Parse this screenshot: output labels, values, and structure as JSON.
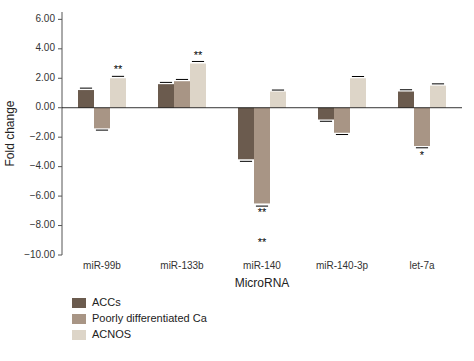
{
  "chart_data": {
    "type": "bar",
    "xlabel": "MicroRNA",
    "ylabel": "Fold change",
    "categories": [
      "miR-99b",
      "miR-133b",
      "miR-140",
      "miR-140-3p",
      "let-7a"
    ],
    "series": [
      {
        "name": "ACCs",
        "color": "#6b5b4e",
        "values": [
          1.2,
          1.6,
          -3.5,
          -0.8,
          1.1
        ],
        "errors": [
          0.13,
          0.12,
          0.14,
          0.12,
          0.12
        ]
      },
      {
        "name": "Poorly differentiated Ca",
        "color": "#a89585",
        "values": [
          -1.4,
          1.8,
          -6.5,
          -1.7,
          -2.6
        ],
        "errors": [
          0.12,
          0.12,
          0.18,
          0.12,
          0.12
        ]
      },
      {
        "name": "ACNOS",
        "color": "#ddd5c8",
        "values": [
          2.0,
          3.0,
          1.1,
          2.0,
          1.5
        ],
        "errors": [
          0.13,
          0.14,
          0.1,
          0.12,
          0.12
        ]
      }
    ],
    "annotations": [
      {
        "text": "**",
        "category": "miR-99b",
        "series": "ACNOS",
        "y": 2.0,
        "position": "above"
      },
      {
        "text": "**",
        "category": "miR-133b",
        "series": "ACNOS",
        "y": 3.0,
        "position": "above"
      },
      {
        "text": "**",
        "category": "miR-140",
        "series": "Poorly differentiated Ca",
        "y": -6.5,
        "position": "below"
      },
      {
        "text": "**",
        "category": "miR-140",
        "series": "Poorly differentiated Ca",
        "y": -8.5,
        "position": "below"
      },
      {
        "text": "*",
        "category": "let-7a",
        "series": "Poorly differentiated Ca",
        "y": -2.6,
        "position": "below"
      }
    ],
    "ylim": [
      -10.0,
      6.5
    ],
    "yticks": [
      {
        "value": 6.0,
        "label": "6.00"
      },
      {
        "value": 4.0,
        "label": "4.00"
      },
      {
        "value": 2.0,
        "label": "2.00"
      },
      {
        "value": 0.0,
        "label": "0.00"
      },
      {
        "value": -2.0,
        "label": "−2.00"
      },
      {
        "value": -4.0,
        "label": "−4.00"
      },
      {
        "value": -6.0,
        "label": "−6.00"
      },
      {
        "value": -8.0,
        "label": "−8.00"
      },
      {
        "value": -10.0,
        "label": "−10.00"
      }
    ],
    "grid": false,
    "legend": "bottom"
  }
}
